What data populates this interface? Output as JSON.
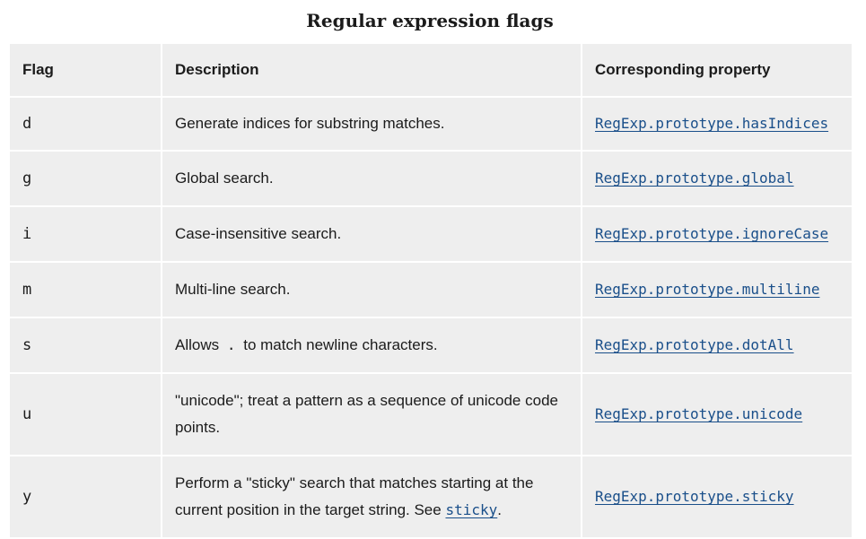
{
  "caption": "Regular expression flags",
  "headers": {
    "flag": "Flag",
    "description": "Description",
    "property": "Corresponding property"
  },
  "rows": [
    {
      "flag": "d",
      "description": "Generate indices for substring matches.",
      "property": "RegExp.prototype.hasIndices"
    },
    {
      "flag": "g",
      "description": "Global search.",
      "property": "RegExp.prototype.global"
    },
    {
      "flag": "i",
      "description": "Case-insensitive search.",
      "property": "RegExp.prototype.ignoreCase"
    },
    {
      "flag": "m",
      "description": "Multi-line search.",
      "property": "RegExp.prototype.multiline"
    },
    {
      "flag": "s",
      "description_before": "Allows",
      "description_code": ".",
      "description_after": "to match newline characters.",
      "property": "RegExp.prototype.dotAll"
    },
    {
      "flag": "u",
      "description": "\"unicode\"; treat a pattern as a sequence of unicode code points.",
      "property": "RegExp.prototype.unicode"
    },
    {
      "flag": "y",
      "description_before": "Perform a \"sticky\" search that matches starting at the current position in the target string. See",
      "description_link": "sticky",
      "description_after": ".",
      "property": "RegExp.prototype.sticky"
    }
  ],
  "colors": {
    "cell_background": "#eeeeee",
    "cell_border": "#ffffff",
    "text": "#1b1b1b",
    "link": "#1a4f8a"
  }
}
